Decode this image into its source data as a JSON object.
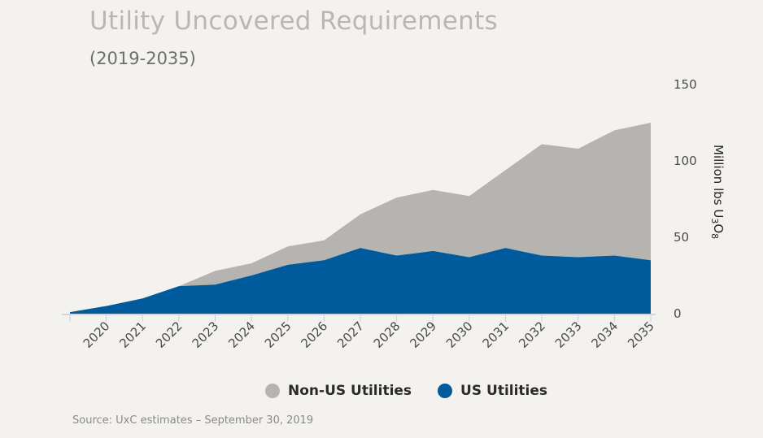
{
  "header": {
    "title": "Utility Uncovered Requirements",
    "subtitle": "(2019-2035)"
  },
  "legend": {
    "non_us": "Non-US Utilities",
    "us": "US Utilities"
  },
  "source": "Source: UxC estimates – September 30, 2019",
  "colors": {
    "non_us": "#b5b4b0",
    "us": "#005a9c",
    "axis": "#cfd6e6"
  },
  "chart_data": {
    "type": "area",
    "stacked": true,
    "title": "Utility Uncovered Requirements",
    "subtitle": "(2019-2035)",
    "ylabel": "Million lbs U3O8",
    "ylabel_main": "Million lbs U",
    "ylabel_sub1": "3",
    "ylabel_mid": "O",
    "ylabel_sub2": "8",
    "ylim": [
      0,
      150
    ],
    "yticks": [
      0,
      50,
      100,
      150
    ],
    "x": [
      2019,
      2020,
      2021,
      2022,
      2023,
      2024,
      2025,
      2026,
      2027,
      2028,
      2029,
      2030,
      2031,
      2032,
      2033,
      2034,
      2035
    ],
    "xtick_labels": [
      "2020",
      "2021",
      "2022",
      "2023",
      "2024",
      "2025",
      "2026",
      "2027",
      "2028",
      "2029",
      "2030",
      "2031",
      "2032",
      "2033",
      "2034",
      "2035"
    ],
    "series": [
      {
        "name": "US Utilities",
        "values": [
          1,
          5,
          10,
          18,
          19,
          25,
          32,
          35,
          43,
          38,
          41,
          37,
          43,
          38,
          37,
          38,
          35
        ]
      },
      {
        "name": "Non-US Utilities",
        "values": [
          0,
          0,
          0,
          0,
          9,
          8,
          12,
          13,
          22,
          38,
          40,
          40,
          51,
          73,
          71,
          82,
          90
        ]
      }
    ]
  }
}
